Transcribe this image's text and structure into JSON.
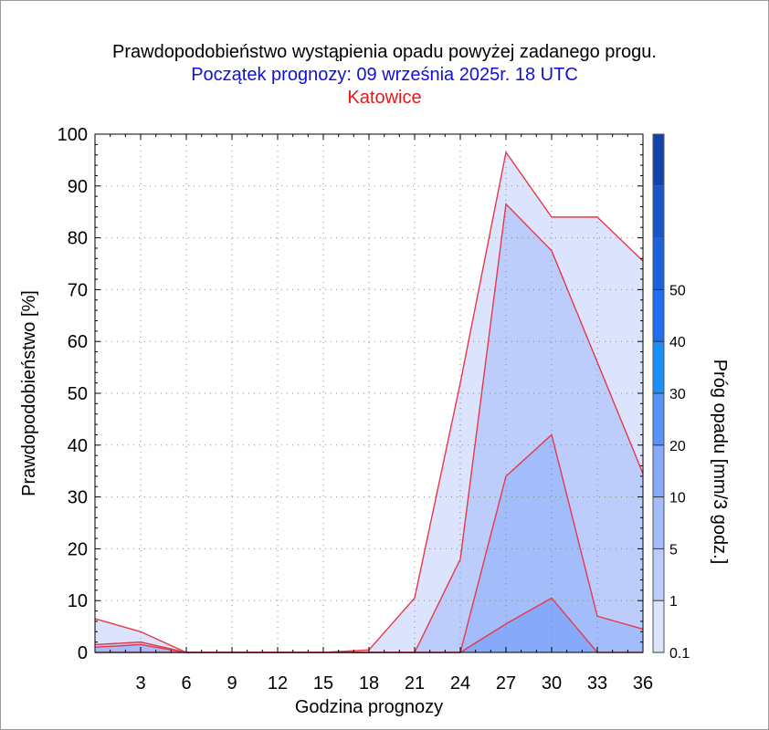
{
  "title": "Prawdopodobieństwo wystąpienia opadu powyżej zadanego progu.",
  "subtitle": "Początek prognozy: 09 września 2025r. 18 UTC",
  "location": "Katowice",
  "colors": {
    "title": "#000000",
    "subtitle": "#1010d8",
    "location": "#e81818",
    "line": "#e83848"
  },
  "chart_data": {
    "type": "area",
    "xlabel": "Godzina prognozy",
    "ylabel": "Prawdopodobieństwo [%]",
    "x": [
      0,
      3,
      6,
      9,
      12,
      15,
      18,
      21,
      24,
      27,
      30,
      33,
      36
    ],
    "xticks": [
      3,
      6,
      9,
      12,
      15,
      18,
      21,
      24,
      27,
      30,
      33,
      36
    ],
    "xlim": [
      0,
      36
    ],
    "yticks": [
      0,
      10,
      20,
      30,
      40,
      50,
      60,
      70,
      80,
      90,
      100
    ],
    "ylim": [
      0,
      100
    ],
    "series": [
      {
        "threshold": "0.1",
        "color": "#dce3fc",
        "values": [
          6.5,
          4,
          0,
          0,
          0,
          0,
          0.5,
          10.5,
          52,
          96.5,
          84,
          84,
          75.5
        ]
      },
      {
        "threshold": "1",
        "color": "#bccdfb",
        "values": [
          1.5,
          2,
          0,
          0,
          0,
          0,
          0,
          0,
          18,
          86.5,
          77.5,
          56,
          34.5
        ]
      },
      {
        "threshold": "5",
        "color": "#a3bcfa",
        "values": [
          1,
          1.5,
          0,
          0,
          0,
          0,
          0,
          0,
          0,
          34,
          42,
          7,
          4.5
        ]
      },
      {
        "threshold": "10",
        "color": "#86a9f9",
        "values": [
          0,
          0,
          0,
          0,
          0,
          0,
          0,
          0,
          0,
          5.5,
          10.5,
          0,
          0
        ]
      }
    ],
    "colorbar": {
      "label": "Próg opadu [mm/3 godz.]",
      "ticks": [
        "0.1",
        "1",
        "5",
        "10",
        "20",
        "30",
        "40",
        "50"
      ],
      "colors": [
        "#dce3fc",
        "#bccdfb",
        "#a3bcfa",
        "#86a9f9",
        "#5a93f7",
        "#1a8ff5",
        "#1f6ff0",
        "#1b62db",
        "#1a56c8",
        "#1443a9"
      ]
    }
  }
}
